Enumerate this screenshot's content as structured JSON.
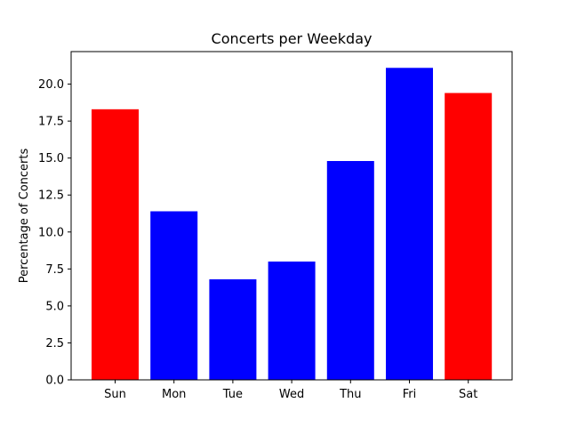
{
  "chart_data": {
    "type": "bar",
    "title": "Concerts per Weekday",
    "xlabel": "",
    "ylabel": "Percentage of Concerts",
    "categories": [
      "Sun",
      "Mon",
      "Tue",
      "Wed",
      "Thu",
      "Fri",
      "Sat"
    ],
    "values": [
      18.3,
      11.4,
      6.8,
      8.0,
      14.8,
      21.1,
      19.4
    ],
    "colors": [
      "#ff0000",
      "#0000ff",
      "#0000ff",
      "#0000ff",
      "#0000ff",
      "#0000ff",
      "#ff0000"
    ],
    "ylim": [
      0,
      22.2
    ],
    "yticks": [
      "0.0",
      "2.5",
      "5.0",
      "7.5",
      "10.0",
      "12.5",
      "15.0",
      "17.5",
      "20.0"
    ],
    "grid": false,
    "legend": "none"
  }
}
